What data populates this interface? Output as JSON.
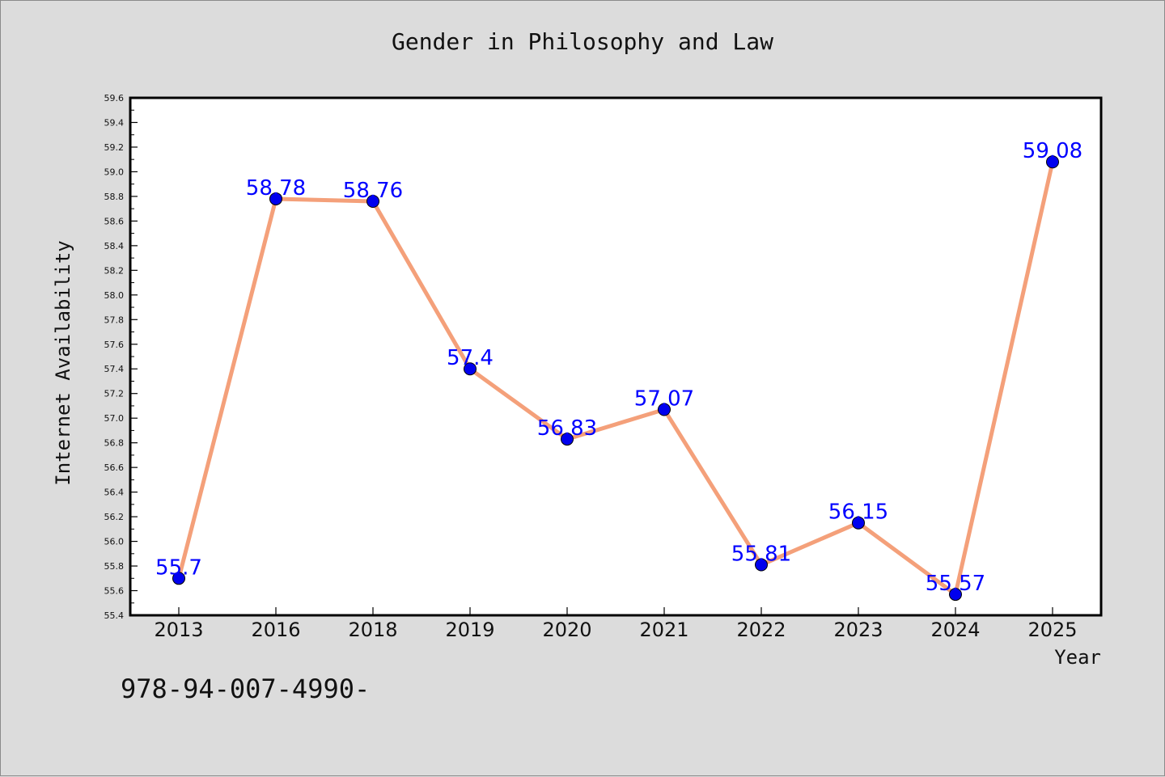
{
  "chart_data": {
    "type": "line",
    "title": "Gender in Philosophy and Law",
    "xlabel": "Year",
    "ylabel": "Internet Availability",
    "categories": [
      "2013",
      "2016",
      "2018",
      "2019",
      "2020",
      "2021",
      "2022",
      "2023",
      "2024",
      "2025"
    ],
    "series": [
      {
        "values": [
          55.7,
          58.78,
          58.76,
          57.4,
          56.83,
          57.07,
          55.81,
          56.15,
          55.57,
          59.08
        ],
        "labels": [
          "55.7",
          "58.78",
          "58.76",
          "57.4",
          "56.83",
          "57.07",
          "55.81",
          "56.15",
          "55.57",
          "59.08"
        ]
      }
    ],
    "ylim": [
      55.4,
      59.6
    ],
    "yticks": [
      "55.4",
      "55.6",
      "55.8",
      "56.0",
      "56.2",
      "56.4",
      "56.6",
      "56.8",
      "57.0",
      "57.2",
      "57.4",
      "57.6",
      "57.8",
      "58.0",
      "58.2",
      "58.4",
      "58.6",
      "58.8",
      "59.0",
      "59.2",
      "59.4",
      "59.6"
    ],
    "grid": false,
    "legend": "none",
    "colors": {
      "line": "#f4a07a",
      "marker": "#0000ee",
      "data_label": "#0000ff",
      "plot_bg": "#ffffff",
      "page_bg": "#dcdcdc"
    }
  },
  "footer": {
    "isbn": "978-94-007-4990-"
  }
}
